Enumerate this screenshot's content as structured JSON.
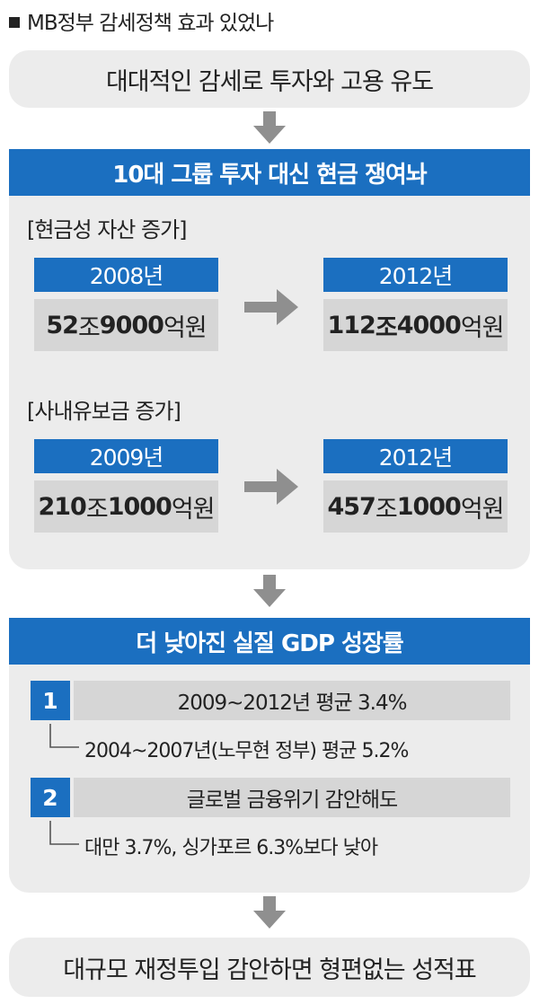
{
  "header": {
    "title": "MB정부 감세정책 효과 있었나"
  },
  "step1": {
    "text": "대대적인 감세로 투자와 고용 유도"
  },
  "section1": {
    "title": "10대 그룹 투자 대신 현금 쟁여놔",
    "group_a": {
      "label": "[현금성 자산 증가]",
      "from_year": "2008년",
      "from_bold_1": "52",
      "from_unit_1": "조",
      "from_bold_2": "9000",
      "from_unit_2": "억원",
      "to_year": "2012년",
      "to_bold_1": "112",
      "to_unit_1": "조",
      "to_bold_2": "4000",
      "to_unit_2": "억원"
    },
    "group_b": {
      "label": "[사내유보금 증가]",
      "from_year": "2009년",
      "from_bold_1": "210",
      "from_unit_1": "조",
      "from_bold_2": "1000",
      "from_unit_2": "억원",
      "to_year": "2012년",
      "to_bold_1": "457",
      "to_unit_1": "조",
      "to_bold_2": "1000",
      "to_unit_2": "억원"
    }
  },
  "section2": {
    "title": "더 낮아진 실질 GDP 성장률",
    "items": [
      {
        "num": "1",
        "text": "2009~2012년 평균 3.4%",
        "note": "2004~2007년(노무현 정부) 평균 5.2%"
      },
      {
        "num": "2",
        "text": "글로벌 금융위기 감안해도",
        "note": "대만 3.7%, 싱가포르 6.3%보다 낮아"
      }
    ]
  },
  "conclusion": {
    "text": "대규모 재정투입 감안하면 형편없는 성적표"
  },
  "colors": {
    "blue": "#1b6fc0",
    "panel_gray": "#ececec",
    "box_gray": "#d6d6d6",
    "arrow_gray": "#8f8f8f"
  }
}
